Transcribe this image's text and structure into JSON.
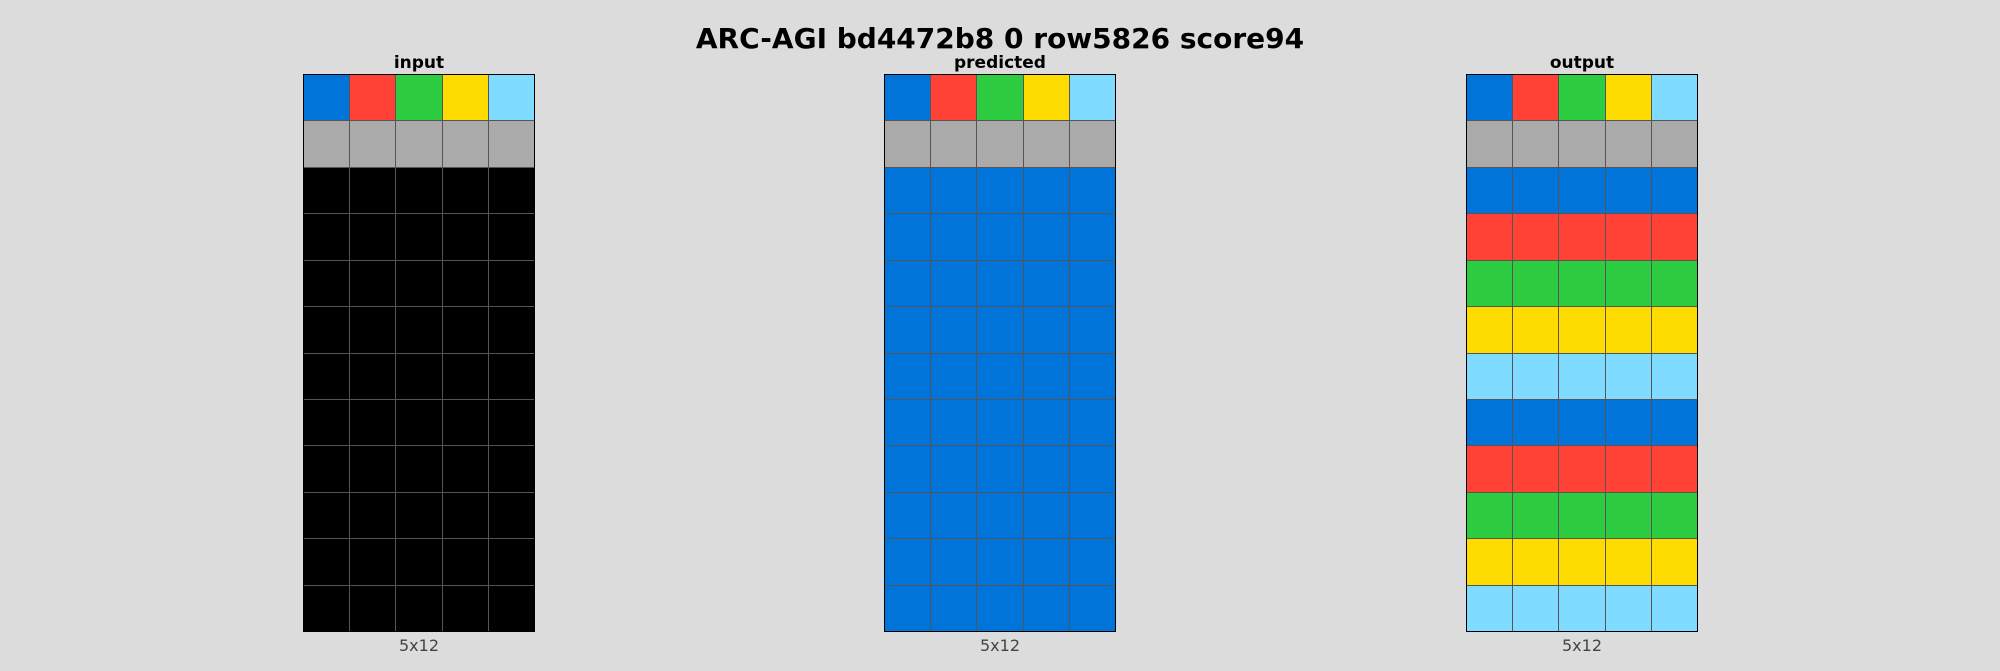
{
  "title": "ARC-AGI bd4472b8 0 row5826 score94",
  "palette": {
    "0": "#000000",
    "1": "#0074d9",
    "2": "#ff4136",
    "3": "#2ecc40",
    "4": "#ffdc00",
    "5": "#aaaaaa",
    "8": "#7fdbff"
  },
  "panels": [
    {
      "title": "input",
      "size_label": "5x12",
      "grid": [
        [
          1,
          2,
          3,
          4,
          8
        ],
        [
          5,
          5,
          5,
          5,
          5
        ],
        [
          0,
          0,
          0,
          0,
          0
        ],
        [
          0,
          0,
          0,
          0,
          0
        ],
        [
          0,
          0,
          0,
          0,
          0
        ],
        [
          0,
          0,
          0,
          0,
          0
        ],
        [
          0,
          0,
          0,
          0,
          0
        ],
        [
          0,
          0,
          0,
          0,
          0
        ],
        [
          0,
          0,
          0,
          0,
          0
        ],
        [
          0,
          0,
          0,
          0,
          0
        ],
        [
          0,
          0,
          0,
          0,
          0
        ],
        [
          0,
          0,
          0,
          0,
          0
        ]
      ]
    },
    {
      "title": "predicted",
      "size_label": "5x12",
      "grid": [
        [
          1,
          2,
          3,
          4,
          8
        ],
        [
          5,
          5,
          5,
          5,
          5
        ],
        [
          1,
          1,
          1,
          1,
          1
        ],
        [
          1,
          1,
          1,
          1,
          1
        ],
        [
          1,
          1,
          1,
          1,
          1
        ],
        [
          1,
          1,
          1,
          1,
          1
        ],
        [
          1,
          1,
          1,
          1,
          1
        ],
        [
          1,
          1,
          1,
          1,
          1
        ],
        [
          1,
          1,
          1,
          1,
          1
        ],
        [
          1,
          1,
          1,
          1,
          1
        ],
        [
          1,
          1,
          1,
          1,
          1
        ],
        [
          1,
          1,
          1,
          1,
          1
        ]
      ]
    },
    {
      "title": "output",
      "size_label": "5x12",
      "grid": [
        [
          1,
          2,
          3,
          4,
          8
        ],
        [
          5,
          5,
          5,
          5,
          5
        ],
        [
          1,
          1,
          1,
          1,
          1
        ],
        [
          2,
          2,
          2,
          2,
          2
        ],
        [
          3,
          3,
          3,
          3,
          3
        ],
        [
          4,
          4,
          4,
          4,
          4
        ],
        [
          8,
          8,
          8,
          8,
          8
        ],
        [
          1,
          1,
          1,
          1,
          1
        ],
        [
          2,
          2,
          2,
          2,
          2
        ],
        [
          3,
          3,
          3,
          3,
          3
        ],
        [
          4,
          4,
          4,
          4,
          4
        ],
        [
          8,
          8,
          8,
          8,
          8
        ]
      ]
    }
  ]
}
